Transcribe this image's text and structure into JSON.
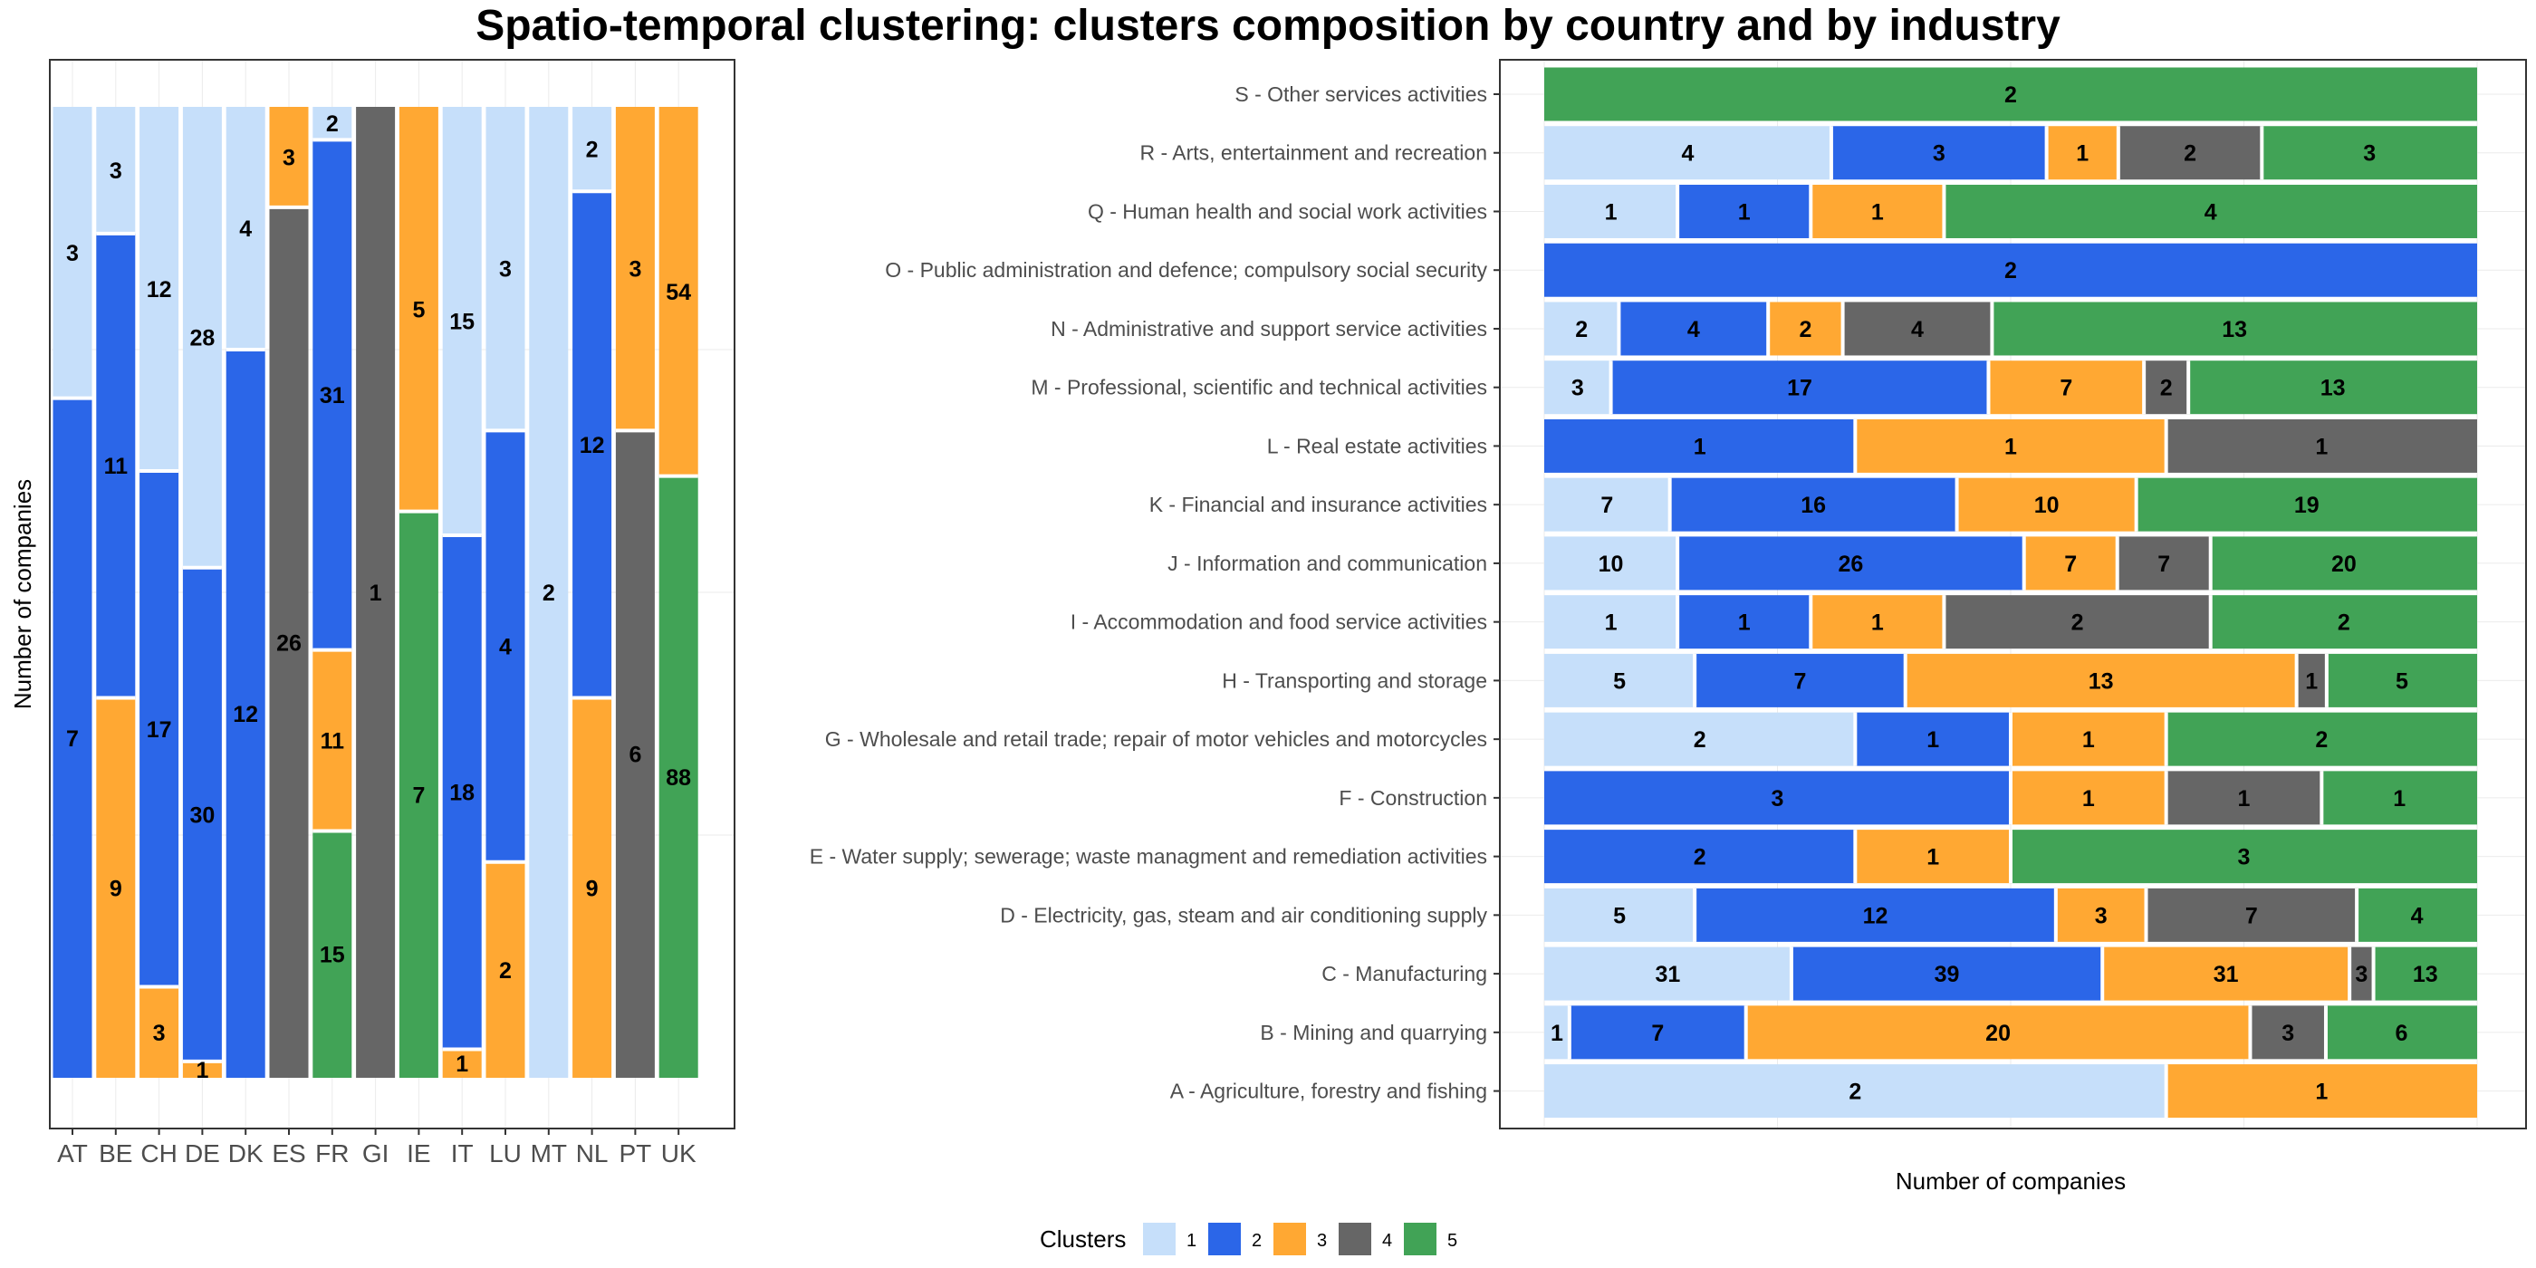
{
  "title": "Spatio-temporal clustering: clusters composition by country and by industry",
  "legend": {
    "title": "Clusters",
    "entries": [
      {
        "key": "1",
        "label": "1",
        "color": "#c6dffa"
      },
      {
        "key": "2",
        "label": "2",
        "color": "#2b66e8"
      },
      {
        "key": "3",
        "label": "3",
        "color": "#ffa833"
      },
      {
        "key": "4",
        "label": "4",
        "color": "#666666"
      },
      {
        "key": "5",
        "label": "5",
        "color": "#41a356"
      }
    ]
  },
  "chart_data": [
    {
      "type": "bar",
      "stacked": "proportional",
      "orientation": "vertical",
      "xlabel": "",
      "ylabel": "Number of companies",
      "categories": [
        "AT",
        "BE",
        "CH",
        "DE",
        "DK",
        "ES",
        "FR",
        "GI",
        "IE",
        "IT",
        "LU",
        "MT",
        "NL",
        "PT",
        "UK"
      ],
      "stack_order_bottom_to_top": [
        "5",
        "4",
        "3",
        "2",
        "1"
      ],
      "series": [
        {
          "name": "1",
          "values": [
            3,
            3,
            12,
            28,
            4,
            0,
            2,
            0,
            0,
            15,
            3,
            2,
            2,
            0,
            0
          ]
        },
        {
          "name": "2",
          "values": [
            7,
            11,
            17,
            30,
            12,
            0,
            31,
            0,
            0,
            18,
            4,
            0,
            12,
            0,
            0
          ]
        },
        {
          "name": "3",
          "values": [
            0,
            9,
            3,
            1,
            0,
            3,
            11,
            0,
            5,
            1,
            2,
            0,
            9,
            3,
            54
          ]
        },
        {
          "name": "4",
          "values": [
            0,
            0,
            0,
            0,
            0,
            26,
            0,
            1,
            0,
            0,
            0,
            0,
            0,
            6,
            0
          ]
        },
        {
          "name": "5",
          "values": [
            0,
            0,
            0,
            0,
            0,
            0,
            15,
            0,
            7,
            0,
            0,
            0,
            0,
            0,
            88
          ]
        }
      ],
      "grid": true,
      "data_labels": true
    },
    {
      "type": "bar",
      "stacked": "proportional",
      "orientation": "horizontal",
      "xlabel": "Number of companies",
      "ylabel": "",
      "categories": [
        "S - Other services activities",
        "R - Arts, entertainment and recreation",
        "Q - Human health and social work activities",
        "O - Public administration and defence; compulsory social security",
        "N - Administrative and support service activities",
        "M - Professional, scientific and technical activities",
        "L - Real estate activities",
        "K - Financial and insurance activities",
        "J - Information and communication",
        "I - Accommodation and food service activities",
        "H - Transporting and storage",
        "G - Wholesale and retail trade; repair of motor vehicles and motorcycles",
        "F - Construction",
        "E - Water supply; sewerage; waste managment and remediation activities",
        "D - Electricity, gas, steam and air conditioning supply",
        "C - Manufacturing",
        "B - Mining and quarrying",
        "A - Agriculture, forestry and fishing"
      ],
      "stack_order_left_to_right": [
        "1",
        "2",
        "3",
        "4",
        "5"
      ],
      "series": [
        {
          "name": "1",
          "values": [
            0,
            4,
            1,
            0,
            2,
            3,
            0,
            7,
            10,
            1,
            5,
            2,
            0,
            0,
            5,
            31,
            1,
            2
          ]
        },
        {
          "name": "2",
          "values": [
            0,
            3,
            1,
            2,
            4,
            17,
            1,
            16,
            26,
            1,
            7,
            1,
            3,
            2,
            12,
            39,
            7,
            0
          ]
        },
        {
          "name": "3",
          "values": [
            0,
            1,
            1,
            0,
            2,
            7,
            1,
            10,
            7,
            1,
            13,
            1,
            1,
            1,
            3,
            31,
            20,
            1
          ]
        },
        {
          "name": "4",
          "values": [
            0,
            2,
            0,
            0,
            4,
            2,
            1,
            0,
            7,
            2,
            1,
            0,
            1,
            0,
            7,
            3,
            3,
            0
          ]
        },
        {
          "name": "5",
          "values": [
            2,
            3,
            4,
            0,
            13,
            13,
            0,
            19,
            20,
            2,
            5,
            2,
            1,
            3,
            4,
            13,
            6,
            0
          ]
        }
      ],
      "grid": true,
      "data_labels": true
    }
  ]
}
